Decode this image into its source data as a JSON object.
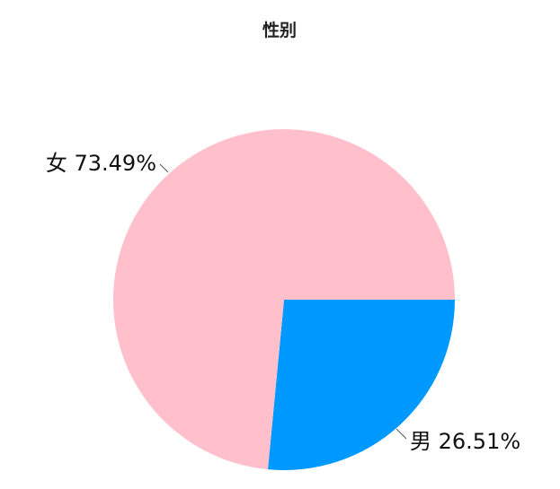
{
  "chart_data": {
    "type": "pie",
    "title": "性别",
    "slices": [
      {
        "name": "男",
        "value": 26.51,
        "label": "男 26.51%",
        "color": "#0099ff"
      },
      {
        "name": "女",
        "value": 73.49,
        "label": "女 73.49%",
        "color": "#ffc0cb"
      }
    ],
    "start_angle_deg": 0,
    "direction": "clockwise",
    "legend": "none"
  }
}
